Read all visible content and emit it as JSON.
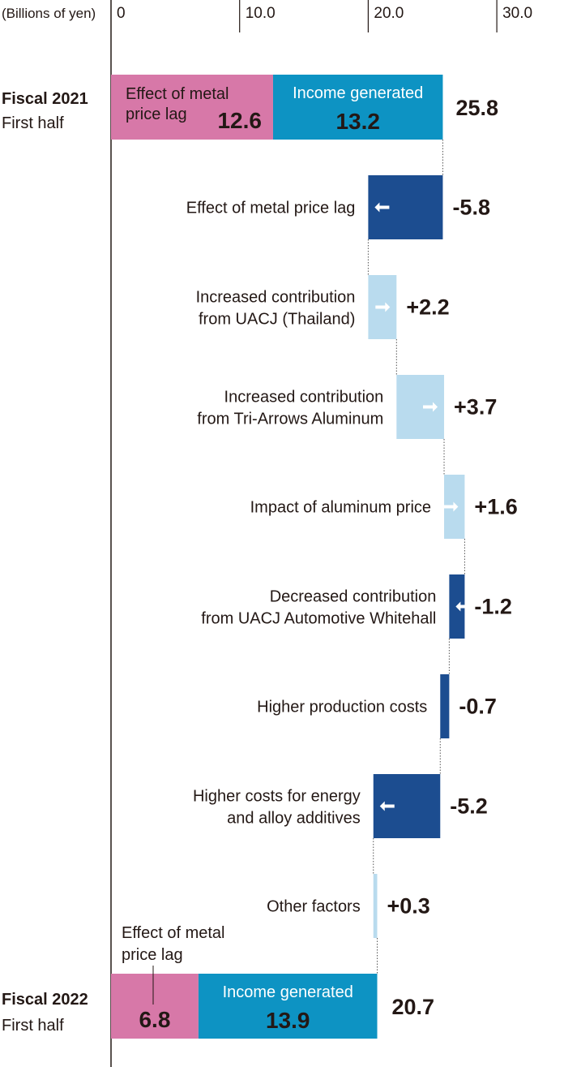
{
  "colors": {
    "pink": "#d778a8",
    "teal": "#0d93c3",
    "navy": "#1c4d90",
    "light_blue": "#b9dbee",
    "axis": "#231815"
  },
  "chart_data": {
    "type": "bar",
    "subtype": "waterfall",
    "unit_label": "(Billions of yen)",
    "x_ticks": [
      "0",
      "10.0",
      "20.0",
      "30.0"
    ],
    "xlim": [
      0,
      35
    ],
    "start": {
      "label_line1": "Fiscal 2021",
      "label_line2": "First half",
      "total": "25.8",
      "segments": [
        {
          "name_line1": "Effect of metal",
          "name_line2": "price lag",
          "value": 12.6,
          "value_label": "12.6",
          "color": "pink"
        },
        {
          "name_line1": "Income generated",
          "name_line2": "",
          "value": 13.2,
          "value_label": "13.2",
          "color": "teal"
        }
      ]
    },
    "steps": [
      {
        "label_line1": "Effect of metal price lag",
        "label_line2": "",
        "value": -5.8,
        "value_label": "-5.8"
      },
      {
        "label_line1": "Increased contribution",
        "label_line2": "from UACJ (Thailand)",
        "value": 2.2,
        "value_label": "+2.2"
      },
      {
        "label_line1": "Increased contribution",
        "label_line2": "from Tri-Arrows Aluminum",
        "value": 3.7,
        "value_label": "+3.7"
      },
      {
        "label_line1": "Impact of aluminum price",
        "label_line2": "",
        "value": 1.6,
        "value_label": "+1.6"
      },
      {
        "label_line1": "Decreased contribution",
        "label_line2": "from UACJ Automotive Whitehall",
        "value": -1.2,
        "value_label": "-1.2"
      },
      {
        "label_line1": "Higher production costs",
        "label_line2": "",
        "value": -0.7,
        "value_label": "-0.7"
      },
      {
        "label_line1": "Higher costs for energy",
        "label_line2": "and alloy additives",
        "value": -5.2,
        "value_label": "-5.2"
      },
      {
        "label_line1": "Other factors",
        "label_line2": "",
        "value": 0.3,
        "value_label": "+0.3"
      }
    ],
    "end": {
      "label_line1": "Fiscal 2022",
      "label_line2": "First half",
      "total": "20.7",
      "callout_line1": "Effect of metal",
      "callout_line2": "price lag",
      "segments": [
        {
          "name_line1": "",
          "name_line2": "",
          "value": 6.8,
          "value_label": "6.8",
          "color": "pink"
        },
        {
          "name_line1": "Income generated",
          "name_line2": "",
          "value": 13.9,
          "value_label": "13.9",
          "color": "teal"
        }
      ]
    }
  }
}
